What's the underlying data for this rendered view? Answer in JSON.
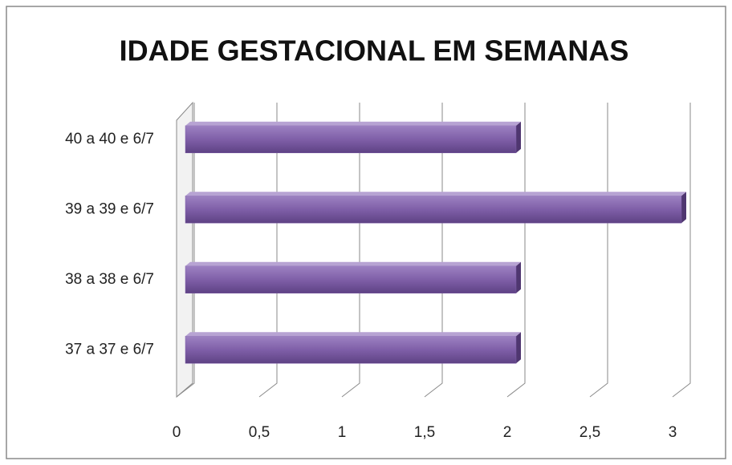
{
  "chart_data": {
    "type": "bar",
    "orientation": "horizontal",
    "title": "IDADE GESTACIONAL EM SEMANAS",
    "categories": [
      "37 a 37 e 6/7",
      "38 a 38 e 6/7",
      "39 a 39 e 6/7",
      "40 a 40 e 6/7"
    ],
    "values": [
      2,
      2,
      3,
      2
    ],
    "color": "#7f5fa8",
    "xlim": [
      0,
      3
    ],
    "xticks": [
      0,
      {
        "value": 0.5,
        "label": "0,5"
      },
      1,
      {
        "value": 1.5,
        "label": "1,5"
      },
      2,
      {
        "value": 2.5,
        "label": "2,5"
      },
      3
    ],
    "grid": true
  }
}
